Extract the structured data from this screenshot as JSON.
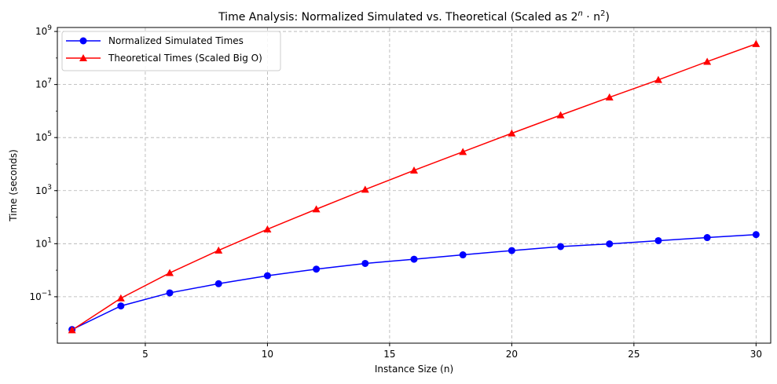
{
  "chart_data": {
    "type": "line",
    "title_prefix": "Time Analysis: Normalized Simulated vs. Theoretical (Scaled as 2",
    "title_sup1": "n",
    "title_mid": " · n",
    "title_sup2": "2",
    "title_suffix": ")",
    "xlabel": "Instance Size (n)",
    "ylabel": "Time (seconds)",
    "xlim": [
      1.4,
      30.6
    ],
    "ylim_log10": [
      -2.75,
      9.15
    ],
    "y_scale": "log",
    "grid": true,
    "grid_style": "dashed",
    "legend_position": "top-left",
    "x_ticks": [
      5,
      10,
      15,
      20,
      25,
      30
    ],
    "x_tick_labels": [
      "5",
      "10",
      "15",
      "20",
      "25",
      "30"
    ],
    "y_ticks": [
      {
        "exp": -1,
        "base": "10",
        "sup": "−1"
      },
      {
        "exp": 1,
        "base": "10",
        "sup": "1"
      },
      {
        "exp": 3,
        "base": "10",
        "sup": "3"
      },
      {
        "exp": 5,
        "base": "10",
        "sup": "5"
      },
      {
        "exp": 7,
        "base": "10",
        "sup": "7"
      },
      {
        "exp": 9,
        "base": "10",
        "sup": "9"
      }
    ],
    "x": [
      2,
      4,
      6,
      8,
      10,
      12,
      14,
      16,
      18,
      20,
      22,
      24,
      26,
      28,
      30
    ],
    "series": [
      {
        "name": "Normalized Simulated Times",
        "color": "#0000ff",
        "marker": "circle",
        "values": [
          0.0058,
          0.045,
          0.14,
          0.31,
          0.62,
          1.1,
          1.8,
          2.6,
          3.8,
          5.5,
          7.8,
          9.8,
          13,
          17,
          22
        ]
      },
      {
        "name": "Theoretical Times (Scaled Big O)",
        "color": "#ff0000",
        "marker": "triangle",
        "values": [
          0.0055,
          0.088,
          0.79,
          5.6,
          35,
          200,
          1100,
          5800,
          29000,
          145000,
          700000,
          3300000,
          15000000,
          73000000,
          340000000
        ]
      }
    ]
  }
}
